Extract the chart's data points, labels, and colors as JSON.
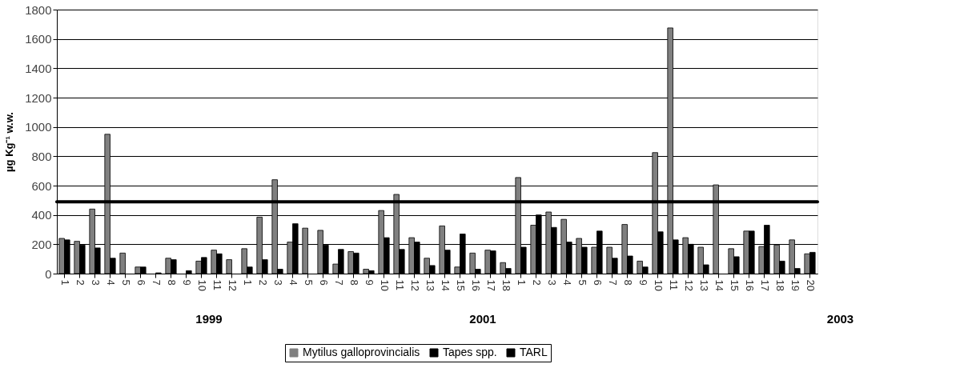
{
  "chart_data": {
    "type": "bar",
    "ylabel": "µg Kg⁻¹ w.w.",
    "categories": [
      "1",
      "2",
      "3",
      "4",
      "5",
      "6",
      "7",
      "8",
      "9",
      "10",
      "11",
      "12",
      "1",
      "2",
      "3",
      "4",
      "5",
      "6",
      "7",
      "8",
      "9",
      "10",
      "11",
      "12",
      "13",
      "14",
      "15",
      "16",
      "17",
      "18",
      "1",
      "2",
      "3",
      "4",
      "5",
      "6",
      "7",
      "8",
      "9",
      "10",
      "11",
      "12",
      "13",
      "14",
      "15",
      "16",
      "17",
      "18",
      "19",
      "20"
    ],
    "series": [
      {
        "name": "Mytilus galloprovincialis",
        "color": "#808080",
        "values": [
          240,
          220,
          440,
          950,
          140,
          45,
          null,
          105,
          null,
          85,
          160,
          95,
          170,
          385,
          640,
          215,
          310,
          295,
          65,
          150,
          30,
          430,
          540,
          245,
          105,
          325,
          45,
          140,
          160,
          75,
          655,
          330,
          420,
          370,
          240,
          180,
          180,
          335,
          85,
          825,
          1675,
          245,
          180,
          605,
          170,
          290,
          185,
          195,
          230,
          135
        ]
      },
      {
        "name": "Tapes spp.",
        "color": "#000000",
        "values": [
          230,
          195,
          175,
          105,
          null,
          45,
          5,
          95,
          20,
          110,
          135,
          null,
          45,
          95,
          30,
          340,
          null,
          195,
          165,
          140,
          20,
          245,
          165,
          215,
          55,
          160,
          270,
          30,
          155,
          35,
          180,
          400,
          315,
          215,
          180,
          290,
          105,
          120,
          45,
          285,
          230,
          200,
          60,
          null,
          115,
          290,
          330,
          85,
          35,
          145
        ]
      }
    ],
    "ref_lines": [
      {
        "axis": "y",
        "value": 490,
        "label": "TARL",
        "color": "#000000"
      }
    ],
    "annotations": [
      "1999",
      "2001",
      "2003"
    ],
    "ylim": [
      0,
      1800
    ],
    "yticks": [
      0,
      200,
      400,
      600,
      800,
      1000,
      1200,
      1400,
      1600,
      1800
    ],
    "grid": "y",
    "legend": "bottom"
  }
}
